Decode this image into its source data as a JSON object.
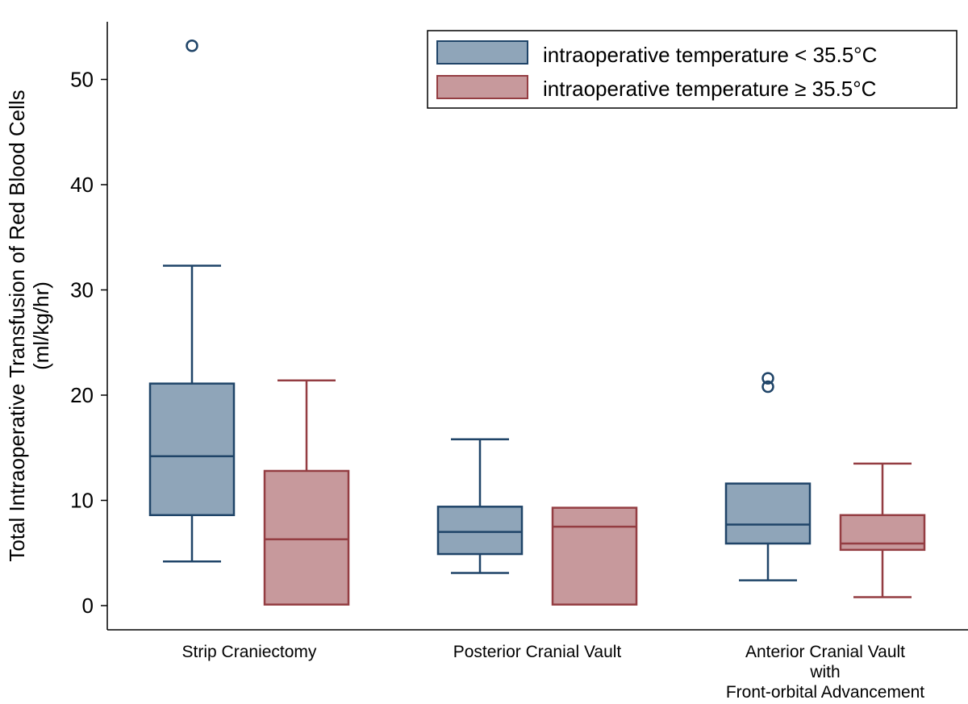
{
  "chart_data": {
    "type": "box",
    "title": "",
    "xlabel": "",
    "ylabel": {
      "line1": "Total Intraoperative Transfusion of Red Blood Cells",
      "line2": "(ml/kg/hr)"
    },
    "ylim": [
      -2,
      56
    ],
    "yticks": [
      0,
      10,
      20,
      30,
      40,
      50
    ],
    "grid": false,
    "legend_position": "top-right",
    "categories": [
      {
        "lines": [
          "Strip Craniectomy"
        ]
      },
      {
        "lines": [
          "Posterior Cranial Vault"
        ]
      },
      {
        "lines": [
          "Anterior Cranial Vault",
          "with",
          "Front-orbital Advancement"
        ]
      }
    ],
    "series": [
      {
        "name": "intraoperative temperature < 35.5°C",
        "fill": "#8fa5b9",
        "stroke": "#1f4468",
        "boxes": [
          {
            "whisker_low": 4.2,
            "q1": 8.6,
            "median": 14.2,
            "q3": 21.1,
            "whisker_high": 32.3,
            "outliers": [
              53.2
            ]
          },
          {
            "whisker_low": 3.1,
            "q1": 4.9,
            "median": 7.0,
            "q3": 9.4,
            "whisker_high": 15.8,
            "outliers": []
          },
          {
            "whisker_low": 2.4,
            "q1": 5.9,
            "median": 7.7,
            "q3": 11.6,
            "whisker_high": null,
            "outliers": [
              20.8,
              21.6
            ]
          }
        ]
      },
      {
        "name": "intraoperative temperature ≥ 35.5°C",
        "fill": "#c7999c",
        "stroke": "#943d42",
        "boxes": [
          {
            "whisker_low": null,
            "q1": 0.1,
            "median": 6.3,
            "q3": 12.8,
            "whisker_high": 21.4,
            "outliers": []
          },
          {
            "whisker_low": null,
            "q1": 0.1,
            "median": 7.5,
            "q3": 9.3,
            "whisker_high": null,
            "outliers": []
          },
          {
            "whisker_low": 0.8,
            "q1": 5.3,
            "median": 5.9,
            "q3": 8.6,
            "whisker_high": 13.5,
            "outliers": []
          }
        ]
      }
    ]
  }
}
